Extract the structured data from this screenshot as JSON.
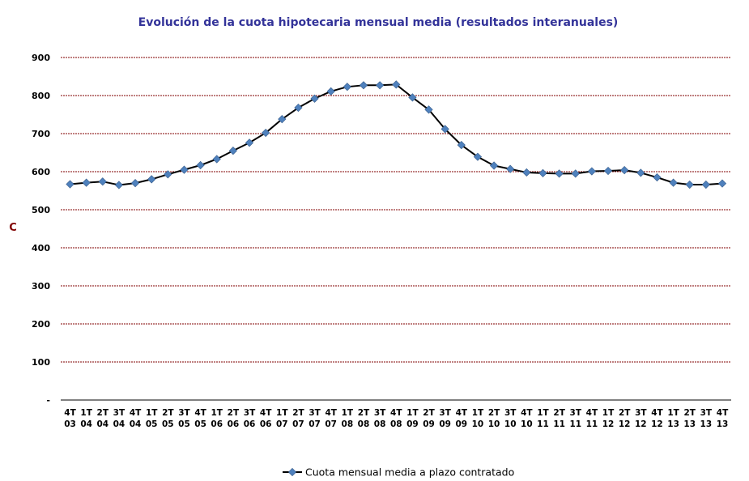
{
  "chart_data": {
    "type": "line",
    "title": "Evolución de la cuota hipotecaria mensual media (resultados interanuales)",
    "ylabel": "C",
    "xlabel": "",
    "ylim": [
      0,
      900
    ],
    "yticks": [
      {
        "value": 0,
        "label": "-"
      },
      {
        "value": 100,
        "label": "100"
      },
      {
        "value": 200,
        "label": "200"
      },
      {
        "value": 300,
        "label": "300"
      },
      {
        "value": 400,
        "label": "400"
      },
      {
        "value": 500,
        "label": "500"
      },
      {
        "value": 600,
        "label": "600"
      },
      {
        "value": 700,
        "label": "700"
      },
      {
        "value": 800,
        "label": "800"
      },
      {
        "value": 900,
        "label": "900"
      }
    ],
    "grid": true,
    "legend_position": "bottom",
    "categories": [
      {
        "q": "4T",
        "y": "03"
      },
      {
        "q": "1T",
        "y": "04"
      },
      {
        "q": "2T",
        "y": "04"
      },
      {
        "q": "3T",
        "y": "04"
      },
      {
        "q": "4T",
        "y": "04"
      },
      {
        "q": "1T",
        "y": "05"
      },
      {
        "q": "2T",
        "y": "05"
      },
      {
        "q": "3T",
        "y": "05"
      },
      {
        "q": "4T",
        "y": "05"
      },
      {
        "q": "1T",
        "y": "06"
      },
      {
        "q": "2T",
        "y": "06"
      },
      {
        "q": "3T",
        "y": "06"
      },
      {
        "q": "4T",
        "y": "06"
      },
      {
        "q": "1T",
        "y": "07"
      },
      {
        "q": "2T",
        "y": "07"
      },
      {
        "q": "3T",
        "y": "07"
      },
      {
        "q": "4T",
        "y": "07"
      },
      {
        "q": "1T",
        "y": "08"
      },
      {
        "q": "2T",
        "y": "08"
      },
      {
        "q": "3T",
        "y": "08"
      },
      {
        "q": "4T",
        "y": "08"
      },
      {
        "q": "1T",
        "y": "09"
      },
      {
        "q": "2T",
        "y": "09"
      },
      {
        "q": "3T",
        "y": "09"
      },
      {
        "q": "4T",
        "y": "09"
      },
      {
        "q": "1T",
        "y": "10"
      },
      {
        "q": "2T",
        "y": "10"
      },
      {
        "q": "3T",
        "y": "10"
      },
      {
        "q": "4T",
        "y": "10"
      },
      {
        "q": "1T",
        "y": "11"
      },
      {
        "q": "2T",
        "y": "11"
      },
      {
        "q": "3T",
        "y": "11"
      },
      {
        "q": "4T",
        "y": "11"
      },
      {
        "q": "1T",
        "y": "12"
      },
      {
        "q": "2T",
        "y": "12"
      },
      {
        "q": "3T",
        "y": "12"
      },
      {
        "q": "4T",
        "y": "12"
      },
      {
        "q": "1T",
        "y": "13"
      },
      {
        "q": "2T",
        "y": "13"
      },
      {
        "q": "3T",
        "y": "13"
      },
      {
        "q": "4T",
        "y": "13"
      }
    ],
    "series": [
      {
        "name": "Cuota mensual media a plazo contratado",
        "values": [
          567,
          571,
          574,
          565,
          570,
          580,
          593,
          605,
          617,
          633,
          655,
          676,
          702,
          738,
          768,
          792,
          811,
          823,
          827,
          827,
          829,
          795,
          763,
          712,
          670,
          639,
          616,
          607,
          598,
          596,
          595,
          595,
          601,
          602,
          604,
          597,
          585,
          571,
          566,
          566,
          569
        ]
      }
    ],
    "colors": {
      "title": "#333399",
      "ylabel": "#800000",
      "grid": "#800000",
      "line": "#000000",
      "marker": "#4f81bd",
      "marker_stroke": "#385d8a"
    }
  }
}
